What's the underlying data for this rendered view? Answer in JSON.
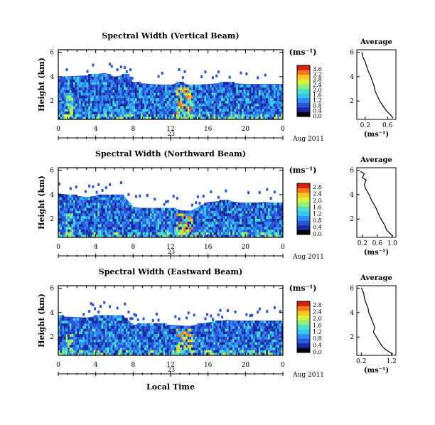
{
  "figure": {
    "xlabel_bottom": "Local Time",
    "date_label": "Aug 2011",
    "date_day": "23",
    "colors": {
      "background": "#2a52c8",
      "colormap": [
        "#ffffff",
        "#000000",
        "#1a2aa0",
        "#2d55d8",
        "#2f8ef0",
        "#37c8f0",
        "#4fe0c8",
        "#8ef07a",
        "#d8f03a",
        "#f8c820",
        "#f57a18",
        "#d81e10"
      ]
    },
    "panels": [
      {
        "title": "Spectral Width (Vertical Beam)",
        "ylabel": "Height (km)",
        "unit_label": "(ms⁻¹)",
        "avg_title": "Average",
        "avg_xlabel": "(ms⁻¹)"
      },
      {
        "title": "Spectral Width (Northward Beam)",
        "ylabel": "Height (km)",
        "unit_label": "(ms⁻¹)",
        "avg_title": "Average",
        "avg_xlabel": "(ms⁻¹)"
      },
      {
        "title": "Spectral Width (Eastward Beam)",
        "ylabel": "Height (km)",
        "unit_label": "(ms⁻¹)",
        "avg_title": "Average",
        "avg_xlabel": "(ms⁻¹)"
      }
    ]
  },
  "chart_data": [
    {
      "type": "heatmap",
      "title": "Spectral Width (Vertical Beam)",
      "xlabel": "",
      "ylabel": "Height (km)",
      "x_ticks": [
        "0",
        "4",
        "8",
        "12",
        "16",
        "20",
        "0"
      ],
      "xlim": [
        0,
        24
      ],
      "ylim": [
        0.5,
        6.2
      ],
      "y_ticks": [
        "2",
        "4",
        "6"
      ],
      "colorbar": {
        "label": "(ms⁻¹)",
        "ticks": [
          "0.0",
          "0.4",
          "0.8",
          "1.2",
          "1.6",
          "2.0",
          "2.4",
          "2.8",
          "3.2",
          "3.6"
        ],
        "range": [
          0,
          3.8
        ]
      },
      "echo_top_km": [
        {
          "x": 0,
          "y": 4.0
        },
        {
          "x": 3,
          "y": 4.1
        },
        {
          "x": 5,
          "y": 4.3
        },
        {
          "x": 6,
          "y": 4.0
        },
        {
          "x": 7.5,
          "y": 4.2
        },
        {
          "x": 8,
          "y": 3.5
        },
        {
          "x": 10,
          "y": 3.4
        },
        {
          "x": 12,
          "y": 3.3
        },
        {
          "x": 13,
          "y": 3.6
        },
        {
          "x": 14,
          "y": 3.3
        },
        {
          "x": 16,
          "y": 3.4
        },
        {
          "x": 18,
          "y": 3.5
        },
        {
          "x": 20,
          "y": 3.4
        },
        {
          "x": 22,
          "y": 3.4
        },
        {
          "x": 24,
          "y": 3.4
        }
      ],
      "average_profile": {
        "title": "Average",
        "xlabel": "(ms⁻¹)",
        "x_ticks": [
          "0.2",
          "0.6"
        ],
        "y_ticks": [
          "2",
          "4",
          "6"
        ],
        "xlim": [
          0.05,
          0.75
        ],
        "ylim": [
          0.5,
          6.2
        ],
        "points": [
          [
            0.14,
            6.0
          ],
          [
            0.16,
            5.6
          ],
          [
            0.2,
            5.2
          ],
          [
            0.23,
            4.8
          ],
          [
            0.26,
            4.4
          ],
          [
            0.3,
            4.0
          ],
          [
            0.33,
            3.6
          ],
          [
            0.36,
            3.2
          ],
          [
            0.38,
            2.8
          ],
          [
            0.42,
            2.4
          ],
          [
            0.46,
            2.0
          ],
          [
            0.52,
            1.6
          ],
          [
            0.58,
            1.2
          ],
          [
            0.65,
            0.9
          ],
          [
            0.7,
            0.6
          ]
        ]
      }
    },
    {
      "type": "heatmap",
      "title": "Spectral Width (Northward Beam)",
      "xlabel": "",
      "ylabel": "Height (km)",
      "x_ticks": [
        "0",
        "4",
        "8",
        "12",
        "16",
        "20",
        "0"
      ],
      "xlim": [
        0,
        24
      ],
      "ylim": [
        0.5,
        6.2
      ],
      "y_ticks": [
        "2",
        "4",
        "6"
      ],
      "colorbar": {
        "label": "(ms⁻¹)",
        "ticks": [
          "0.0",
          "0.4",
          "0.8",
          "1.2",
          "1.6",
          "2.0",
          "2.4",
          "2.8"
        ],
        "range": [
          0,
          3.0
        ]
      },
      "echo_top_km": [
        {
          "x": 0,
          "y": 4.1
        },
        {
          "x": 3,
          "y": 3.8
        },
        {
          "x": 5,
          "y": 4.0
        },
        {
          "x": 7,
          "y": 3.9
        },
        {
          "x": 8,
          "y": 3.0
        },
        {
          "x": 10,
          "y": 2.8
        },
        {
          "x": 12,
          "y": 2.9
        },
        {
          "x": 14,
          "y": 2.6
        },
        {
          "x": 16,
          "y": 3.4
        },
        {
          "x": 18,
          "y": 3.5
        },
        {
          "x": 20,
          "y": 3.3
        },
        {
          "x": 22,
          "y": 3.4
        },
        {
          "x": 24,
          "y": 3.3
        }
      ],
      "average_profile": {
        "title": "Average",
        "xlabel": "(ms⁻¹)",
        "x_ticks": [
          "0.2",
          "0.6",
          "1.0"
        ],
        "y_ticks": [
          "2",
          "4",
          "6"
        ],
        "xlim": [
          0.05,
          1.1
        ],
        "ylim": [
          0.5,
          6.2
        ],
        "points": [
          [
            0.15,
            5.9
          ],
          [
            0.25,
            5.7
          ],
          [
            0.2,
            5.4
          ],
          [
            0.3,
            5.2
          ],
          [
            0.25,
            4.8
          ],
          [
            0.3,
            4.4
          ],
          [
            0.38,
            4.0
          ],
          [
            0.45,
            3.5
          ],
          [
            0.55,
            3.0
          ],
          [
            0.62,
            2.5
          ],
          [
            0.7,
            2.0
          ],
          [
            0.8,
            1.5
          ],
          [
            0.85,
            1.1
          ],
          [
            0.95,
            0.8
          ],
          [
            1.02,
            0.6
          ]
        ]
      }
    },
    {
      "type": "heatmap",
      "title": "Spectral Width (Eastward Beam)",
      "xlabel": "Local Time",
      "ylabel": "Height (km)",
      "x_ticks": [
        "0",
        "4",
        "8",
        "12",
        "16",
        "20",
        "0"
      ],
      "xlim": [
        0,
        24
      ],
      "ylim": [
        0.5,
        6.2
      ],
      "y_ticks": [
        "2",
        "4",
        "6"
      ],
      "colorbar": {
        "label": "(ms⁻¹)",
        "ticks": [
          "0.0",
          "0.4",
          "0.8",
          "1.2",
          "1.6",
          "2.0",
          "2.4",
          "2.8"
        ],
        "range": [
          0,
          3.0
        ]
      },
      "echo_top_km": [
        {
          "x": 0,
          "y": 3.7
        },
        {
          "x": 3,
          "y": 3.6
        },
        {
          "x": 5,
          "y": 3.8
        },
        {
          "x": 7,
          "y": 3.7
        },
        {
          "x": 8,
          "y": 3.0
        },
        {
          "x": 10,
          "y": 3.1
        },
        {
          "x": 12,
          "y": 3.0
        },
        {
          "x": 14,
          "y": 2.9
        },
        {
          "x": 16,
          "y": 3.2
        },
        {
          "x": 18,
          "y": 3.4
        },
        {
          "x": 20,
          "y": 3.3
        },
        {
          "x": 22,
          "y": 3.3
        },
        {
          "x": 24,
          "y": 3.3
        }
      ],
      "average_profile": {
        "title": "Average",
        "xlabel": "(ms⁻¹)",
        "x_ticks": [
          "0.2",
          "1.2"
        ],
        "y_ticks": [
          "2",
          "4",
          "6"
        ],
        "xlim": [
          0.05,
          1.35
        ],
        "ylim": [
          0.5,
          6.2
        ],
        "points": [
          [
            0.2,
            6.0
          ],
          [
            0.28,
            5.6
          ],
          [
            0.3,
            5.2
          ],
          [
            0.35,
            4.8
          ],
          [
            0.42,
            4.4
          ],
          [
            0.45,
            4.0
          ],
          [
            0.52,
            3.6
          ],
          [
            0.58,
            3.2
          ],
          [
            0.65,
            2.8
          ],
          [
            0.6,
            2.4
          ],
          [
            0.7,
            2.0
          ],
          [
            0.8,
            1.6
          ],
          [
            0.9,
            1.2
          ],
          [
            1.05,
            0.9
          ],
          [
            1.25,
            0.6
          ]
        ]
      }
    }
  ]
}
